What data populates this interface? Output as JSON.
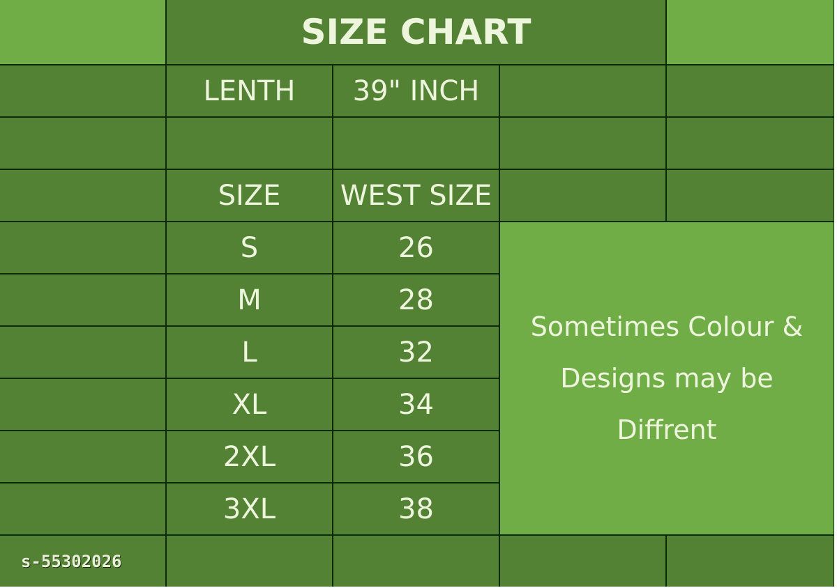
{
  "title": "SIZE CHART",
  "length": {
    "label": "LENTH",
    "value": "39\" INCH"
  },
  "headers": {
    "size": "SIZE",
    "waist": "WEST SIZE"
  },
  "rows": [
    {
      "size": "S",
      "waist": "26"
    },
    {
      "size": "M",
      "waist": "28"
    },
    {
      "size": "L",
      "waist": "32"
    },
    {
      "size": "XL",
      "waist": "34"
    },
    {
      "size": "2XL",
      "waist": "36"
    },
    {
      "size": "3XL",
      "waist": "38"
    }
  ],
  "note_lines": [
    "Sometimes Colour &",
    "Designs may be",
    "Diffrent"
  ],
  "watermark": "s-55302026",
  "colors": {
    "light_green": "#70ad47",
    "dark_green": "#548235",
    "grid": "#0d2a06",
    "text": "#eef5dd"
  }
}
